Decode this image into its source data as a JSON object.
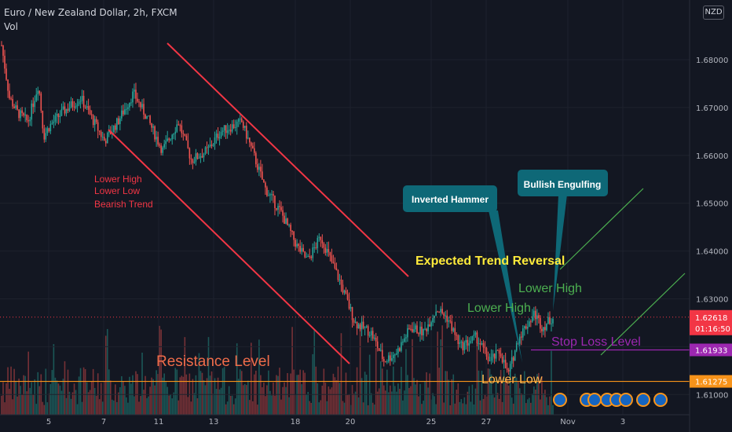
{
  "header": {
    "title": "Euro / New Zealand Dollar, 2h, FXCM",
    "volume_label": "Vol",
    "currency_badge": "NZD"
  },
  "colors": {
    "background": "#131722",
    "up": "#26a69a",
    "down": "#ef5350",
    "channel_line": "#f23645",
    "resistance_line": "#f7931a",
    "stop_loss": "#9c27b0",
    "projection": "#4caf50",
    "callout_bg": "#0e6877"
  },
  "chart_data": {
    "type": "candlestick",
    "symbol": "EURNZD",
    "timeframe": "2h",
    "y_axis": {
      "min": 1.605,
      "max": 1.689,
      "ticks": [
        "1.61000",
        "1.62000",
        "1.63000",
        "1.64000",
        "1.65000",
        "1.66000",
        "1.67000",
        "1.68000"
      ]
    },
    "x_axis": {
      "ticks": [
        "5",
        "7",
        "11",
        "13",
        "18",
        "20",
        "25",
        "27",
        "Nov",
        "3"
      ]
    },
    "price_path": [
      [
        1.683,
        0.0
      ],
      [
        1.672,
        0.03
      ],
      [
        1.669,
        0.06
      ],
      [
        1.667,
        0.1
      ],
      [
        1.675,
        0.14
      ],
      [
        1.664,
        0.16
      ],
      [
        1.666,
        0.18
      ],
      [
        1.669,
        0.23
      ],
      [
        1.672,
        0.3
      ],
      [
        1.668,
        0.34
      ],
      [
        1.663,
        0.39
      ],
      [
        1.667,
        0.44
      ],
      [
        1.673,
        0.5
      ],
      [
        1.668,
        0.55
      ],
      [
        1.661,
        0.61
      ],
      [
        1.667,
        0.67
      ],
      [
        1.659,
        0.72
      ],
      [
        1.661,
        0.78
      ],
      [
        1.665,
        0.83
      ],
      [
        1.667,
        0.91
      ],
      [
        1.661,
        0.95
      ],
      [
        1.653,
        1.0
      ],
      [
        1.648,
        1.06
      ],
      [
        1.641,
        1.12
      ],
      [
        1.638,
        1.16
      ],
      [
        1.643,
        1.21
      ],
      [
        1.634,
        1.28
      ],
      [
        1.625,
        1.34
      ],
      [
        1.623,
        1.4
      ],
      [
        1.617,
        1.45
      ],
      [
        1.619,
        1.5
      ],
      [
        1.624,
        1.55
      ],
      [
        1.623,
        1.6
      ],
      [
        1.628,
        1.65
      ],
      [
        1.626,
        1.69
      ],
      [
        1.62,
        1.74
      ],
      [
        1.622,
        1.8
      ],
      [
        1.617,
        1.85
      ],
      [
        1.619,
        1.89
      ],
      [
        1.614,
        1.92
      ],
      [
        1.622,
        1.96
      ],
      [
        1.627,
        2.02
      ],
      [
        1.624,
        2.05
      ],
      [
        1.6262,
        2.09
      ]
    ],
    "price_labels": [
      {
        "text": "1.62618",
        "countdown": "01:16:50",
        "value": 1.62618,
        "color": "#f23645"
      },
      {
        "text": "1.61933",
        "value": 1.61933,
        "color": "#9c27b0"
      },
      {
        "text": "1.61275",
        "value": 1.61275,
        "color": "#f7931a"
      }
    ],
    "annotations": [
      {
        "text": "Lower High",
        "color": "#f23645"
      },
      {
        "text": "Lower Low",
        "color": "#f23645"
      },
      {
        "text": "Bearish Trend",
        "color": "#f23645"
      },
      {
        "text": "Resistance Level",
        "color": "#ef6c4a"
      },
      {
        "text": "Expected Trend Reversal",
        "color": "#ffeb3b"
      },
      {
        "text": "Lower High",
        "color": "#4caf50"
      },
      {
        "text": "Lower High",
        "color": "#4caf50"
      },
      {
        "text": "Stop Loss  Level",
        "color": "#9c27b0"
      },
      {
        "text": "Lower Low",
        "color": "#ffb74d"
      },
      {
        "text": "Inverted Hammer",
        "color": "#ffffff"
      },
      {
        "text": "Bullish Engulfing",
        "color": "#ffffff"
      }
    ],
    "event_markers": 8
  }
}
